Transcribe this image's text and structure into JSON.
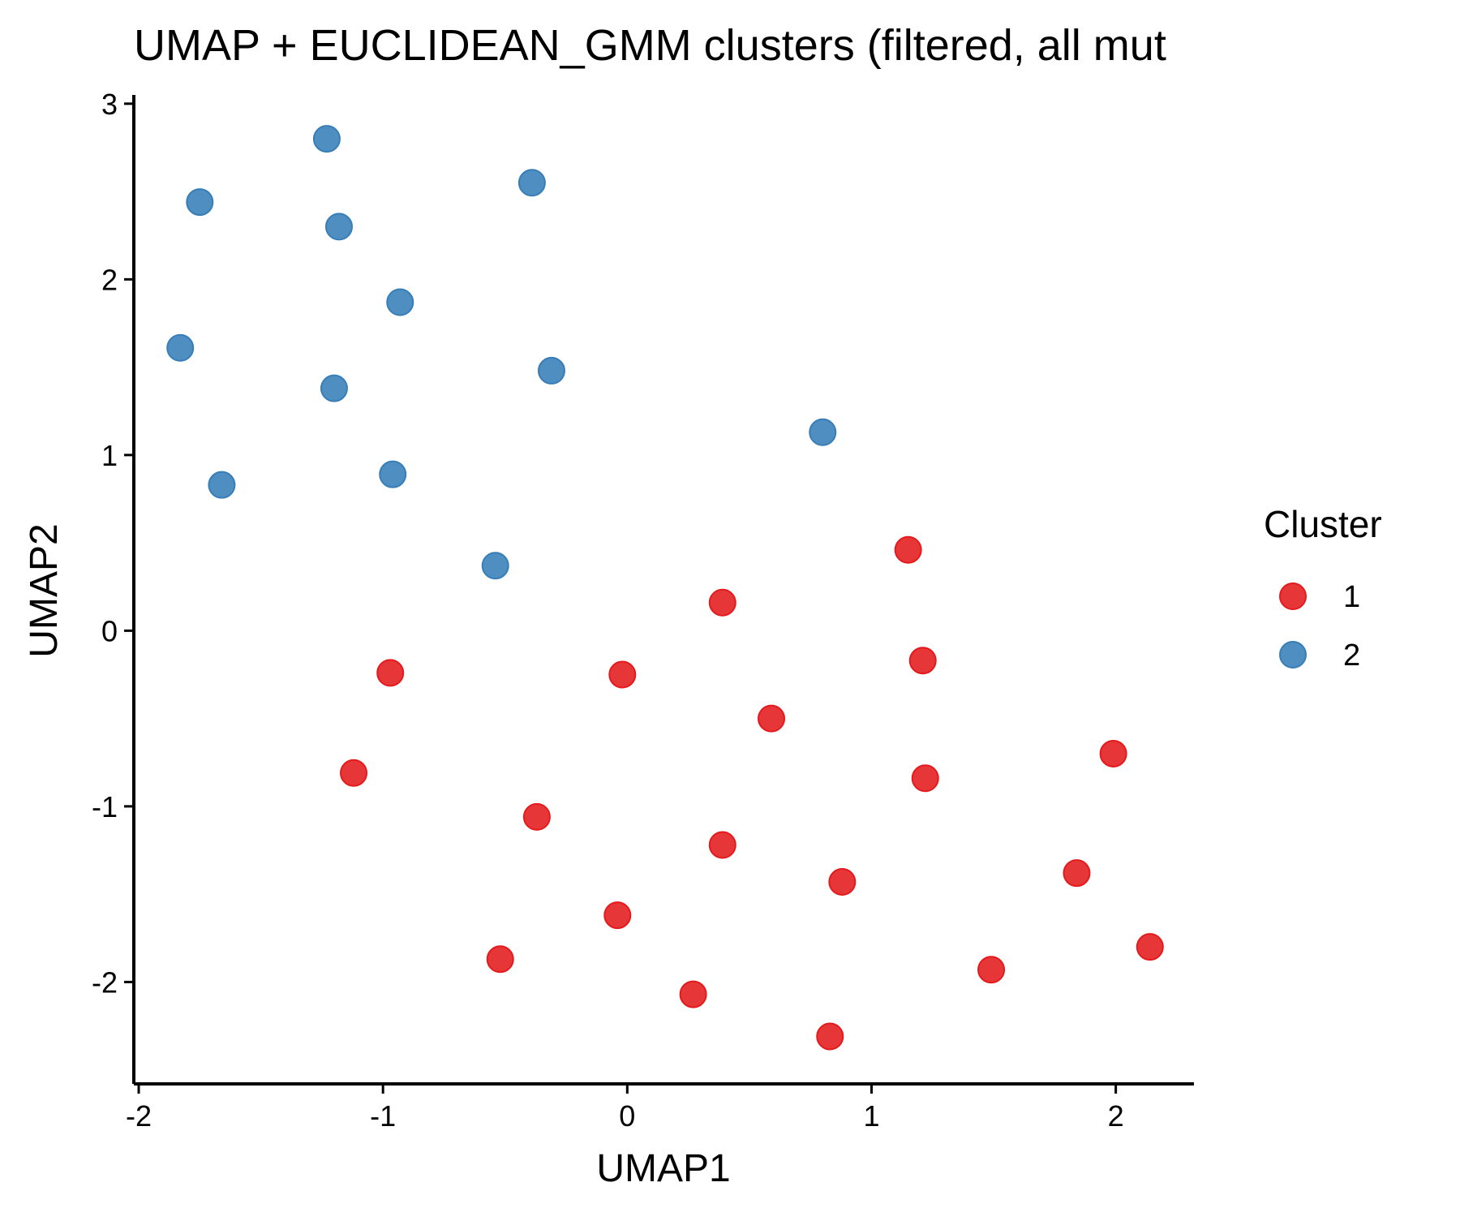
{
  "chart_data": {
    "type": "scatter",
    "title": "UMAP + EUCLIDEAN_GMM clusters (filtered, all mut",
    "xlabel": "UMAP1",
    "ylabel": "UMAP2",
    "xlim": [
      -2.02,
      2.32
    ],
    "ylim": [
      -2.58,
      3.05
    ],
    "x_ticks": [
      -2,
      -1,
      0,
      1,
      2
    ],
    "y_ticks": [
      -2,
      -1,
      0,
      1,
      2,
      3
    ],
    "x_tick_labels": [
      "-2",
      "-1",
      "0",
      "1",
      "2"
    ],
    "y_tick_labels": [
      "-2",
      "-1",
      "0",
      "1",
      "2",
      "3"
    ],
    "grid": false,
    "legend": {
      "title": "Cluster",
      "placement": "right"
    },
    "series": [
      {
        "name": "1",
        "color": "#E41A1C",
        "points": [
          {
            "x": 1.15,
            "y": 0.46
          },
          {
            "x": 0.39,
            "y": 0.16
          },
          {
            "x": 1.21,
            "y": -0.17
          },
          {
            "x": -0.97,
            "y": -0.24
          },
          {
            "x": -0.02,
            "y": -0.25
          },
          {
            "x": 0.59,
            "y": -0.5
          },
          {
            "x": 1.99,
            "y": -0.7
          },
          {
            "x": -1.12,
            "y": -0.81
          },
          {
            "x": 1.22,
            "y": -0.84
          },
          {
            "x": -0.37,
            "y": -1.06
          },
          {
            "x": 0.39,
            "y": -1.22
          },
          {
            "x": 0.88,
            "y": -1.43
          },
          {
            "x": 1.84,
            "y": -1.38
          },
          {
            "x": -0.04,
            "y": -1.62
          },
          {
            "x": -0.52,
            "y": -1.87
          },
          {
            "x": 2.14,
            "y": -1.8
          },
          {
            "x": 1.49,
            "y": -1.93
          },
          {
            "x": 0.27,
            "y": -2.07
          },
          {
            "x": 0.83,
            "y": -2.31
          }
        ]
      },
      {
        "name": "2",
        "color": "#377EB8",
        "points": [
          {
            "x": -1.23,
            "y": 2.8
          },
          {
            "x": -0.39,
            "y": 2.55
          },
          {
            "x": -1.75,
            "y": 2.44
          },
          {
            "x": -1.18,
            "y": 2.3
          },
          {
            "x": -0.93,
            "y": 1.87
          },
          {
            "x": -1.83,
            "y": 1.61
          },
          {
            "x": -0.31,
            "y": 1.48
          },
          {
            "x": -1.2,
            "y": 1.38
          },
          {
            "x": 0.8,
            "y": 1.13
          },
          {
            "x": -0.96,
            "y": 0.89
          },
          {
            "x": -1.66,
            "y": 0.83
          },
          {
            "x": -0.54,
            "y": 0.37
          }
        ]
      }
    ]
  }
}
